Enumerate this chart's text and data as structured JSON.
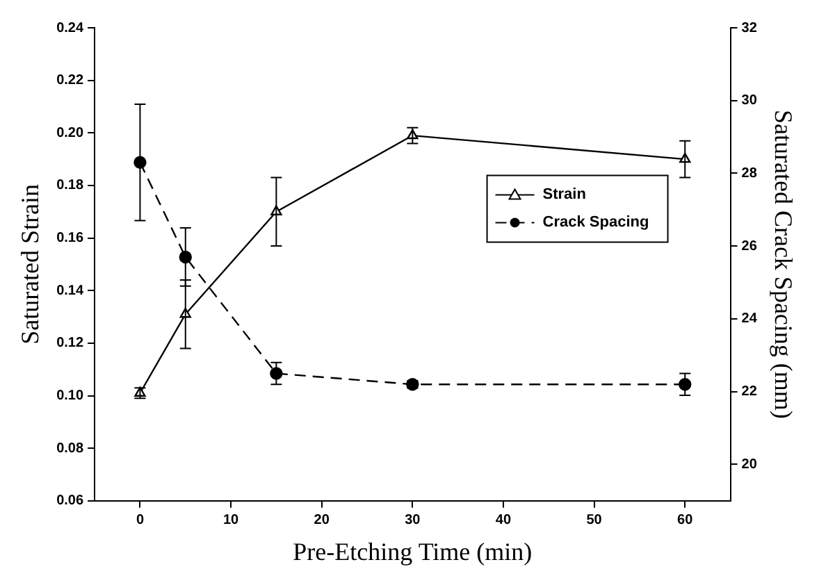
{
  "chart_data": {
    "type": "line",
    "xlabel": "Pre-Etching Time (min)",
    "ylabel": "Saturated Strain",
    "y2label": "Saturated Crack Spacing (mm)",
    "x": [
      0,
      5,
      15,
      30,
      60
    ],
    "series": [
      {
        "name": "Strain",
        "color": "#000000",
        "values": [
          0.101,
          0.131,
          0.17,
          0.199,
          0.19
        ],
        "errors": [
          0.002,
          0.013,
          0.013,
          0.003,
          0.007
        ],
        "marker": "triangle",
        "line_style": "solid"
      },
      {
        "name": "Crack Spacing",
        "color": "#000000",
        "axis": "y2",
        "values": [
          28.3,
          25.7,
          22.5,
          22.2,
          22.2
        ],
        "errors": [
          1.6,
          0.8,
          0.3,
          0.1,
          0.3
        ],
        "marker": "circle",
        "line_style": "dashed"
      }
    ],
    "xlim": [
      -5,
      65
    ],
    "xticks": [
      0,
      10,
      20,
      30,
      40,
      50,
      60
    ],
    "ylim": [
      0.06,
      0.24
    ],
    "yticks": [
      {
        "value": 0.06,
        "label": "0.06"
      },
      {
        "value": 0.08,
        "label": "0.08"
      },
      {
        "value": 0.1,
        "label": "0.10"
      },
      {
        "value": 0.12,
        "label": "0.12"
      },
      {
        "value": 0.14,
        "label": "0.14"
      },
      {
        "value": 0.16,
        "label": "0.16"
      },
      {
        "value": 0.18,
        "label": "0.18"
      },
      {
        "value": 0.2,
        "label": "0.20"
      },
      {
        "value": 0.22,
        "label": "0.22"
      },
      {
        "value": 0.24,
        "label": "0.24"
      }
    ],
    "y2lim": [
      19,
      32
    ],
    "y2ticks": [
      20,
      22,
      24,
      26,
      28,
      30,
      32
    ],
    "grid": false,
    "legend": "right"
  }
}
